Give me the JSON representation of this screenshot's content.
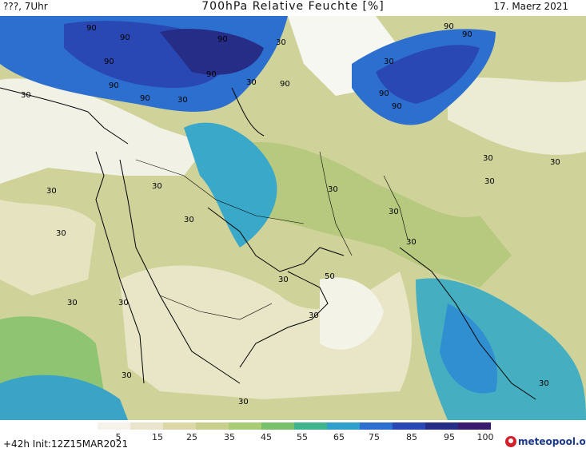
{
  "header": {
    "left": "???, 7Uhr",
    "title": "700hPa Relative Feuchte [%]",
    "date": "17. Maerz 2021"
  },
  "footer": {
    "init": "+42h Init:12Z15MAR2021",
    "brand": "meteopool.org"
  },
  "colorbar": {
    "ticks": [
      "5",
      "15",
      "25",
      "35",
      "45",
      "55",
      "65",
      "75",
      "85",
      "95",
      "100"
    ],
    "colors": [
      "#f4f2ea",
      "#e9e4cc",
      "#dcd7a7",
      "#c8cf8d",
      "#a8cb73",
      "#78c06b",
      "#3fb48d",
      "#2f9fcb",
      "#2c6fcf",
      "#2a48b3",
      "#262d86",
      "#3a1a6c"
    ]
  },
  "map": {
    "contour_labels": [
      "90",
      "30",
      "50"
    ]
  }
}
